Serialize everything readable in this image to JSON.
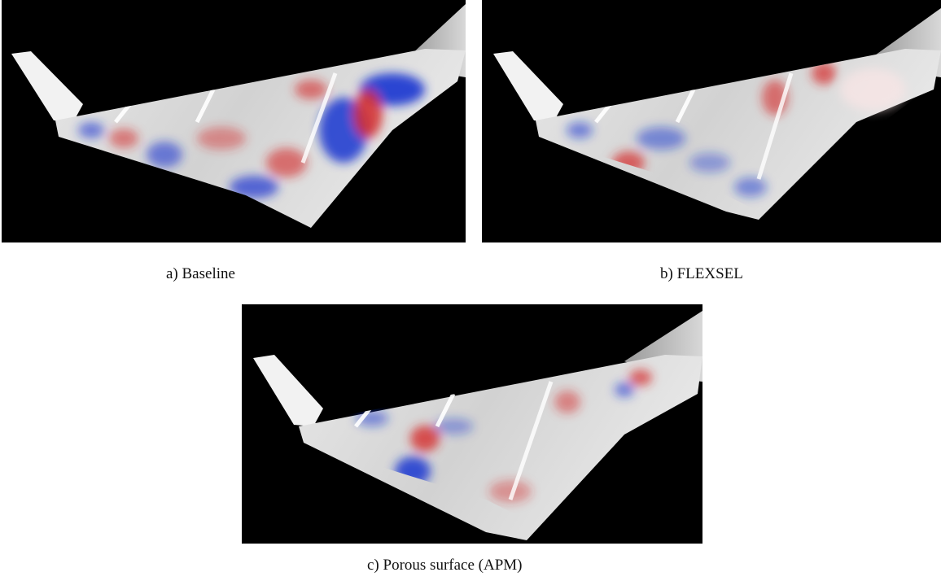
{
  "figure": {
    "panels": [
      {
        "label": "a) Baseline"
      },
      {
        "label": "b) FLEXSEL"
      },
      {
        "label": "c) Porous surface (APM)"
      }
    ],
    "colors": {
      "background": "#000000",
      "surface_neutral": "#dcdcdc",
      "positive": "#d42a2a",
      "negative": "#1a35d0"
    }
  }
}
